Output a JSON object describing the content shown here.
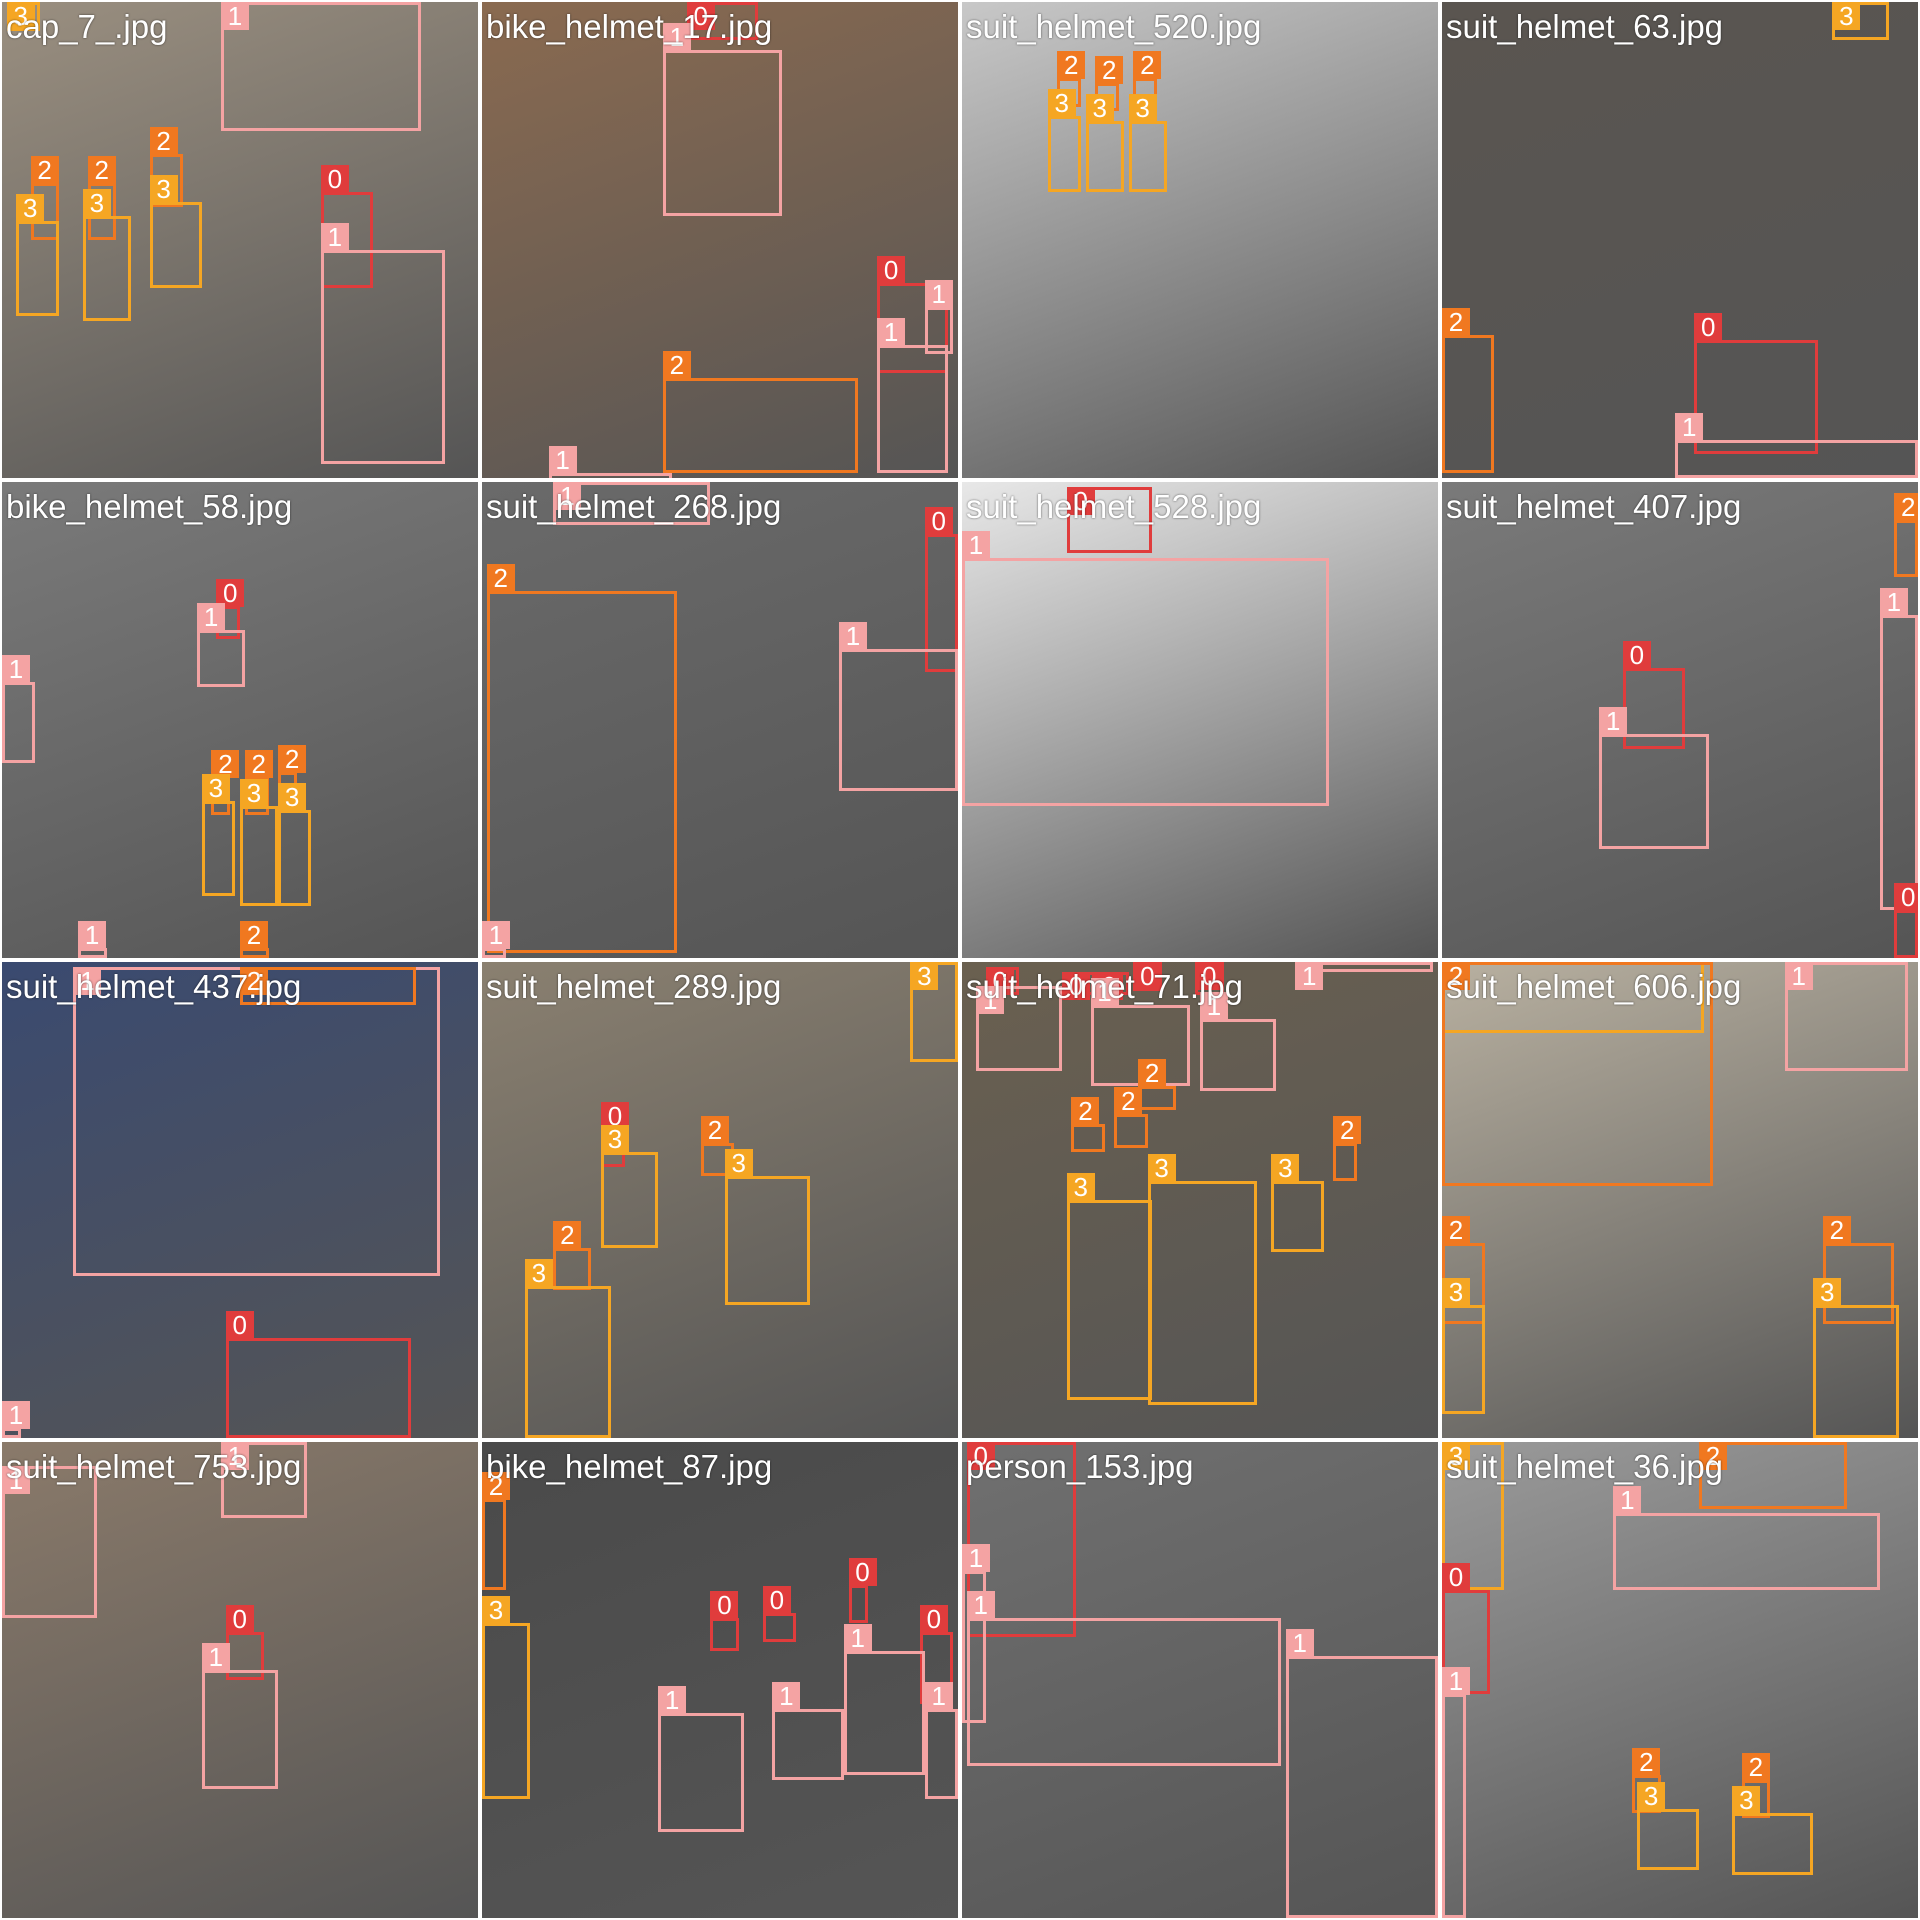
{
  "class_colors": {
    "0": "#e03c3c",
    "1": "#f4a3a3",
    "2": "#f07820",
    "3": "#f5a623"
  },
  "tiles": [
    {
      "filename": "cap_7_.jpg",
      "bg": "#9a8f80",
      "boxes": [
        {
          "cls": "3",
          "r": [
            0.01,
            0.0,
            0.08,
            0.06
          ]
        },
        {
          "cls": "1",
          "r": [
            0.46,
            0.0,
            0.88,
            0.27
          ]
        },
        {
          "cls": "2",
          "r": [
            0.06,
            0.38,
            0.12,
            0.5
          ]
        },
        {
          "cls": "2",
          "r": [
            0.18,
            0.38,
            0.24,
            0.5
          ]
        },
        {
          "cls": "2",
          "r": [
            0.31,
            0.32,
            0.38,
            0.43
          ]
        },
        {
          "cls": "3",
          "r": [
            0.03,
            0.46,
            0.12,
            0.66
          ]
        },
        {
          "cls": "3",
          "r": [
            0.17,
            0.45,
            0.27,
            0.67
          ]
        },
        {
          "cls": "3",
          "r": [
            0.31,
            0.42,
            0.42,
            0.6
          ]
        },
        {
          "cls": "0",
          "r": [
            0.67,
            0.4,
            0.78,
            0.6
          ]
        },
        {
          "cls": "1",
          "r": [
            0.67,
            0.52,
            0.93,
            0.97
          ]
        }
      ]
    },
    {
      "filename": "bike_helmet_17.jpg",
      "bg": "#8a6a50",
      "boxes": [
        {
          "cls": "0",
          "r": [
            0.43,
            0.0,
            0.58,
            0.08
          ]
        },
        {
          "cls": "1",
          "r": [
            0.38,
            0.1,
            0.63,
            0.45
          ]
        },
        {
          "cls": "2",
          "r": [
            0.38,
            0.79,
            0.79,
            0.99
          ]
        },
        {
          "cls": "0",
          "r": [
            0.83,
            0.59,
            0.98,
            0.78
          ]
        },
        {
          "cls": "1",
          "r": [
            0.83,
            0.72,
            0.98,
            0.99
          ]
        },
        {
          "cls": "1",
          "r": [
            0.93,
            0.64,
            0.99,
            0.74
          ]
        },
        {
          "cls": "1",
          "r": [
            0.14,
            0.99,
            0.4,
            1.0
          ]
        }
      ]
    },
    {
      "filename": "suit_helmet_520.jpg",
      "bg": "#c8c8c8",
      "boxes": [
        {
          "cls": "2",
          "r": [
            0.2,
            0.16,
            0.25,
            0.22
          ]
        },
        {
          "cls": "2",
          "r": [
            0.28,
            0.17,
            0.33,
            0.23
          ]
        },
        {
          "cls": "2",
          "r": [
            0.36,
            0.16,
            0.41,
            0.22
          ]
        },
        {
          "cls": "3",
          "r": [
            0.18,
            0.24,
            0.25,
            0.4
          ]
        },
        {
          "cls": "3",
          "r": [
            0.26,
            0.25,
            0.34,
            0.4
          ]
        },
        {
          "cls": "3",
          "r": [
            0.35,
            0.25,
            0.43,
            0.4
          ]
        }
      ]
    },
    {
      "filename": "suit_helmet_63.jpg",
      "bg": "#5a5550",
      "boxes": [
        {
          "cls": "3",
          "r": [
            0.82,
            0.0,
            0.94,
            0.08
          ]
        },
        {
          "cls": "2",
          "r": [
            0.0,
            0.7,
            0.11,
            0.99
          ]
        },
        {
          "cls": "0",
          "r": [
            0.53,
            0.71,
            0.79,
            0.95
          ]
        },
        {
          "cls": "1",
          "r": [
            0.49,
            0.92,
            1.0,
            1.0
          ]
        }
      ]
    },
    {
      "filename": "bike_helmet_58.jpg",
      "bg": "#7a7a7a",
      "boxes": [
        {
          "cls": "0",
          "r": [
            0.45,
            0.26,
            0.5,
            0.33
          ]
        },
        {
          "cls": "1",
          "r": [
            0.41,
            0.31,
            0.51,
            0.43
          ]
        },
        {
          "cls": "1",
          "r": [
            0.0,
            0.42,
            0.07,
            0.59
          ]
        },
        {
          "cls": "2",
          "r": [
            0.44,
            0.62,
            0.48,
            0.7
          ]
        },
        {
          "cls": "2",
          "r": [
            0.51,
            0.62,
            0.56,
            0.7
          ]
        },
        {
          "cls": "2",
          "r": [
            0.58,
            0.61,
            0.62,
            0.69
          ]
        },
        {
          "cls": "3",
          "r": [
            0.42,
            0.67,
            0.49,
            0.87
          ]
        },
        {
          "cls": "3",
          "r": [
            0.5,
            0.68,
            0.58,
            0.89
          ]
        },
        {
          "cls": "3",
          "r": [
            0.58,
            0.69,
            0.65,
            0.89
          ]
        },
        {
          "cls": "1",
          "r": [
            0.16,
            0.98,
            0.22,
            1.0
          ]
        },
        {
          "cls": "2",
          "r": [
            0.5,
            0.98,
            0.56,
            1.0
          ]
        }
      ]
    },
    {
      "filename": "suit_helmet_268.jpg",
      "bg": "#6a6a6a",
      "boxes": [
        {
          "cls": "1",
          "r": [
            0.15,
            0.0,
            0.48,
            0.09
          ]
        },
        {
          "cls": "2",
          "r": [
            0.01,
            0.23,
            0.41,
            0.99
          ]
        },
        {
          "cls": "0",
          "r": [
            0.93,
            0.11,
            1.0,
            0.4
          ]
        },
        {
          "cls": "1",
          "r": [
            0.75,
            0.35,
            1.0,
            0.65
          ]
        },
        {
          "cls": "1",
          "r": [
            0.0,
            0.98,
            0.05,
            1.0
          ]
        }
      ]
    },
    {
      "filename": "suit_helmet_528.jpg",
      "bg": "#e8e8e8",
      "boxes": [
        {
          "cls": "0",
          "r": [
            0.22,
            0.01,
            0.4,
            0.15
          ]
        },
        {
          "cls": "1",
          "r": [
            0.0,
            0.16,
            0.77,
            0.68
          ]
        }
      ]
    },
    {
      "filename": "suit_helmet_407.jpg",
      "bg": "#7a7a7a",
      "boxes": [
        {
          "cls": "0",
          "r": [
            0.38,
            0.39,
            0.51,
            0.56
          ]
        },
        {
          "cls": "1",
          "r": [
            0.33,
            0.53,
            0.56,
            0.77
          ]
        },
        {
          "cls": "2",
          "r": [
            0.95,
            0.08,
            1.0,
            0.2
          ]
        },
        {
          "cls": "1",
          "r": [
            0.92,
            0.28,
            1.0,
            0.9
          ]
        },
        {
          "cls": "0",
          "r": [
            0.95,
            0.9,
            1.0,
            1.0
          ]
        }
      ]
    },
    {
      "filename": "suit_helmet_437.jpg",
      "bg": "#3a4a70",
      "boxes": [
        {
          "cls": "1",
          "r": [
            0.15,
            0.01,
            0.92,
            0.66
          ]
        },
        {
          "cls": "2",
          "r": [
            0.5,
            0.01,
            0.87,
            0.09
          ]
        },
        {
          "cls": "0",
          "r": [
            0.47,
            0.79,
            0.86,
            1.0
          ]
        },
        {
          "cls": "1",
          "r": [
            0.0,
            0.98,
            0.04,
            1.0
          ]
        }
      ]
    },
    {
      "filename": "suit_helmet_289.jpg",
      "bg": "#8a8070",
      "boxes": [
        {
          "cls": "3",
          "r": [
            0.9,
            0.0,
            1.0,
            0.21
          ]
        },
        {
          "cls": "0",
          "r": [
            0.25,
            0.35,
            0.3,
            0.43
          ]
        },
        {
          "cls": "2",
          "r": [
            0.46,
            0.38,
            0.53,
            0.45
          ]
        },
        {
          "cls": "3",
          "r": [
            0.25,
            0.4,
            0.37,
            0.6
          ]
        },
        {
          "cls": "3",
          "r": [
            0.51,
            0.45,
            0.69,
            0.72
          ]
        },
        {
          "cls": "2",
          "r": [
            0.15,
            0.6,
            0.23,
            0.69
          ]
        },
        {
          "cls": "3",
          "r": [
            0.09,
            0.68,
            0.27,
            1.0
          ]
        }
      ]
    },
    {
      "filename": "suit_helmet_71.jpg",
      "bg": "#6a6050",
      "boxes": [
        {
          "cls": "0",
          "r": [
            0.05,
            0.01,
            0.12,
            0.07
          ]
        },
        {
          "cls": "0",
          "r": [
            0.21,
            0.02,
            0.28,
            0.07
          ]
        },
        {
          "cls": "0",
          "r": [
            0.28,
            0.02,
            0.35,
            0.07
          ]
        },
        {
          "cls": "0",
          "r": [
            0.36,
            0.0,
            0.42,
            0.06
          ]
        },
        {
          "cls": "0",
          "r": [
            0.49,
            0.0,
            0.55,
            0.07
          ]
        },
        {
          "cls": "1",
          "r": [
            0.03,
            0.05,
            0.21,
            0.23
          ]
        },
        {
          "cls": "1",
          "r": [
            0.27,
            0.09,
            0.48,
            0.26
          ]
        },
        {
          "cls": "1",
          "r": [
            0.5,
            0.12,
            0.66,
            0.27
          ]
        },
        {
          "cls": "2",
          "r": [
            0.37,
            0.26,
            0.45,
            0.31
          ]
        },
        {
          "cls": "2",
          "r": [
            0.23,
            0.34,
            0.3,
            0.4
          ]
        },
        {
          "cls": "2",
          "r": [
            0.32,
            0.32,
            0.39,
            0.39
          ]
        },
        {
          "cls": "2",
          "r": [
            0.78,
            0.38,
            0.83,
            0.46
          ]
        },
        {
          "cls": "3",
          "r": [
            0.22,
            0.5,
            0.4,
            0.92
          ]
        },
        {
          "cls": "3",
          "r": [
            0.39,
            0.46,
            0.62,
            0.93
          ]
        },
        {
          "cls": "3",
          "r": [
            0.65,
            0.46,
            0.76,
            0.61
          ]
        },
        {
          "cls": "1",
          "r": [
            0.7,
            0.0,
            0.99,
            0.02
          ]
        }
      ]
    },
    {
      "filename": "suit_helmet_606.jpg",
      "bg": "#b8b0a0",
      "boxes": [
        {
          "cls": "3",
          "r": [
            0.0,
            0.0,
            0.55,
            0.15
          ]
        },
        {
          "cls": "1",
          "r": [
            0.72,
            0.0,
            0.98,
            0.23
          ]
        },
        {
          "cls": "2",
          "r": [
            0.0,
            0.0,
            0.57,
            0.47
          ]
        },
        {
          "cls": "2",
          "r": [
            0.0,
            0.59,
            0.09,
            0.76
          ]
        },
        {
          "cls": "3",
          "r": [
            0.0,
            0.72,
            0.09,
            0.95
          ]
        },
        {
          "cls": "2",
          "r": [
            0.8,
            0.59,
            0.95,
            0.76
          ]
        },
        {
          "cls": "3",
          "r": [
            0.78,
            0.72,
            0.96,
            1.0
          ]
        }
      ]
    },
    {
      "filename": "suit_helmet_753.jpg",
      "bg": "#8a7a6a",
      "boxes": [
        {
          "cls": "1",
          "r": [
            0.0,
            0.05,
            0.2,
            0.37
          ]
        },
        {
          "cls": "1",
          "r": [
            0.46,
            0.0,
            0.64,
            0.16
          ]
        },
        {
          "cls": "0",
          "r": [
            0.47,
            0.4,
            0.55,
            0.5
          ]
        },
        {
          "cls": "1",
          "r": [
            0.42,
            0.48,
            0.58,
            0.73
          ]
        }
      ]
    },
    {
      "filename": "bike_helmet_87.jpg",
      "bg": "#4a4a4a",
      "boxes": [
        {
          "cls": "2",
          "r": [
            0.0,
            0.12,
            0.05,
            0.31
          ]
        },
        {
          "cls": "3",
          "r": [
            0.0,
            0.38,
            0.1,
            0.75
          ]
        },
        {
          "cls": "0",
          "r": [
            0.48,
            0.37,
            0.54,
            0.44
          ]
        },
        {
          "cls": "0",
          "r": [
            0.59,
            0.36,
            0.66,
            0.42
          ]
        },
        {
          "cls": "0",
          "r": [
            0.77,
            0.3,
            0.81,
            0.38
          ]
        },
        {
          "cls": "0",
          "r": [
            0.92,
            0.4,
            0.99,
            0.55
          ]
        },
        {
          "cls": "1",
          "r": [
            0.37,
            0.57,
            0.55,
            0.82
          ]
        },
        {
          "cls": "1",
          "r": [
            0.61,
            0.56,
            0.76,
            0.71
          ]
        },
        {
          "cls": "1",
          "r": [
            0.76,
            0.44,
            0.93,
            0.7
          ]
        },
        {
          "cls": "1",
          "r": [
            0.93,
            0.56,
            1.0,
            0.75
          ]
        }
      ]
    },
    {
      "filename": "person_153.jpg",
      "bg": "#707070",
      "boxes": [
        {
          "cls": "0",
          "r": [
            0.01,
            0.0,
            0.24,
            0.41
          ]
        },
        {
          "cls": "1",
          "r": [
            0.0,
            0.27,
            0.05,
            0.59
          ]
        },
        {
          "cls": "1",
          "r": [
            0.01,
            0.37,
            0.67,
            0.68
          ]
        },
        {
          "cls": "1",
          "r": [
            0.68,
            0.45,
            1.0,
            1.0
          ]
        }
      ]
    },
    {
      "filename": "suit_helmet_36.jpg",
      "bg": "#9a9a9a",
      "boxes": [
        {
          "cls": "2",
          "r": [
            0.54,
            0.0,
            0.85,
            0.14
          ]
        },
        {
          "cls": "1",
          "r": [
            0.36,
            0.15,
            0.92,
            0.31
          ]
        },
        {
          "cls": "3",
          "r": [
            0.0,
            0.0,
            0.13,
            0.31
          ]
        },
        {
          "cls": "0",
          "r": [
            0.0,
            0.31,
            0.1,
            0.53
          ]
        },
        {
          "cls": "1",
          "r": [
            0.0,
            0.53,
            0.05,
            1.0
          ]
        },
        {
          "cls": "2",
          "r": [
            0.4,
            0.7,
            0.46,
            0.78
          ]
        },
        {
          "cls": "2",
          "r": [
            0.63,
            0.71,
            0.69,
            0.79
          ]
        },
        {
          "cls": "3",
          "r": [
            0.41,
            0.77,
            0.54,
            0.9
          ]
        },
        {
          "cls": "3",
          "r": [
            0.61,
            0.78,
            0.78,
            0.91
          ]
        }
      ]
    }
  ]
}
